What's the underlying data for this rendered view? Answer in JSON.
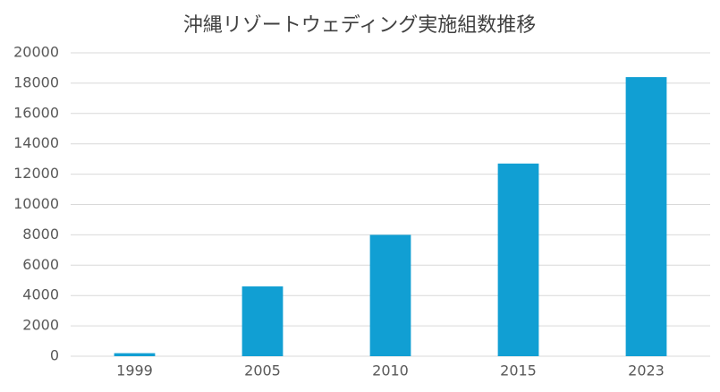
{
  "chart_data": {
    "type": "bar",
    "title": "沖縄リゾートウェディング実施組数推移",
    "categories": [
      "1999",
      "2005",
      "2010",
      "2015",
      "2023"
    ],
    "values": [
      200,
      4600,
      8000,
      12700,
      18400
    ],
    "color": "#119fd3",
    "ylim": [
      0,
      20000
    ],
    "yticks": [
      0,
      2000,
      4000,
      6000,
      8000,
      10000,
      12000,
      14000,
      16000,
      18000,
      20000
    ],
    "grid": true
  }
}
